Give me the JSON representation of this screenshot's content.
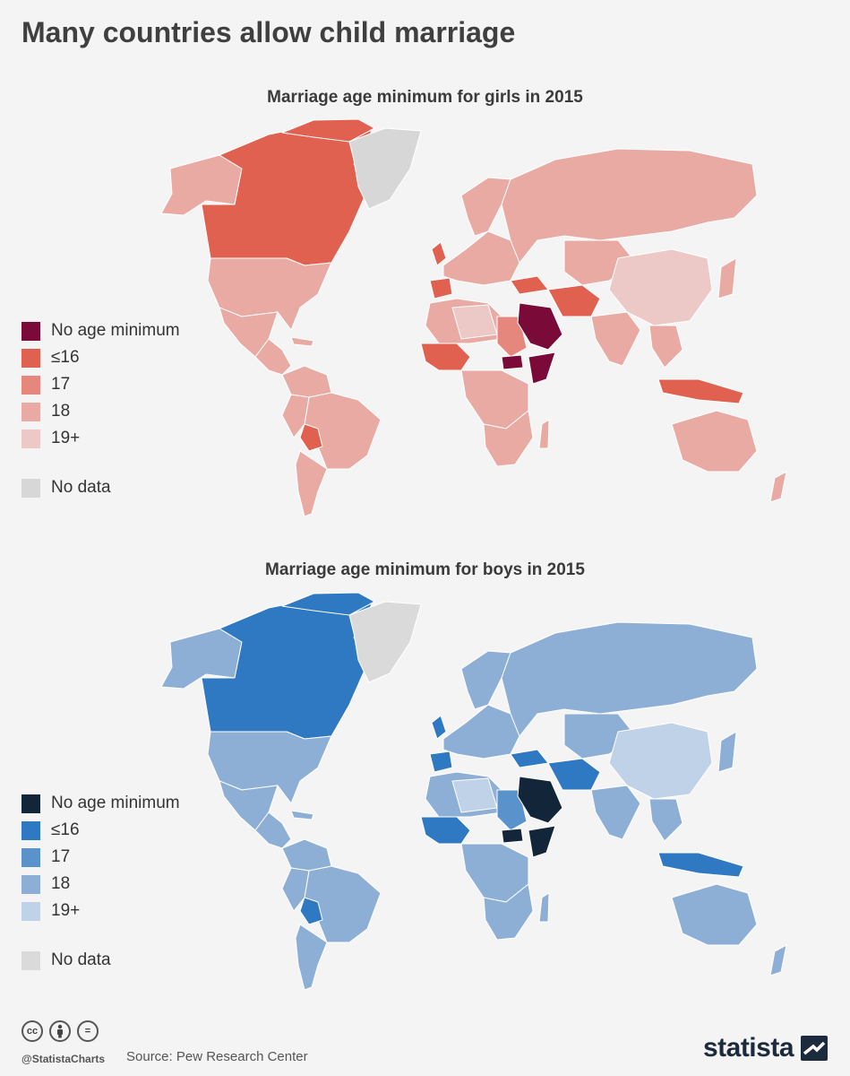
{
  "title": "Many countries allow child marriage",
  "maps": [
    {
      "id": "girls",
      "title": "Marriage age minimum for girls in 2015",
      "colors": {
        "none": "#7a0a38",
        "le16": "#e0614f",
        "a17": "#e5877c",
        "a18": "#e9aaa3",
        "a19": "#ecc9c6",
        "nodata": "#d7d7d7"
      },
      "legend": [
        {
          "label": "No age minimum",
          "color": "#7a0a38"
        },
        {
          "label": "≤16",
          "color": "#e0614f"
        },
        {
          "label": "17",
          "color": "#e5877c"
        },
        {
          "label": "18",
          "color": "#e9aaa3"
        },
        {
          "label": "19+",
          "color": "#ecc9c6"
        },
        {
          "label": "No data",
          "color": "#d7d7d7"
        }
      ]
    },
    {
      "id": "boys",
      "title": "Marriage age minimum for boys in 2015",
      "colors": {
        "none": "#132539",
        "le16": "#2f78c2",
        "a17": "#5a93cc",
        "a18": "#8dafd6",
        "a19": "#c0d2e8",
        "nodata": "#dadada"
      },
      "legend": [
        {
          "label": "No age minimum",
          "color": "#132539"
        },
        {
          "label": "≤16",
          "color": "#2f78c2"
        },
        {
          "label": "17",
          "color": "#5a93cc"
        },
        {
          "label": "18",
          "color": "#8dafd6"
        },
        {
          "label": "19+",
          "color": "#c0d2e8"
        },
        {
          "label": "No data",
          "color": "#dadada"
        }
      ]
    }
  ],
  "footer": {
    "license_icons": [
      "creative-commons-icon",
      "attribution-icon",
      "no-derivatives-icon"
    ],
    "cc_label": "cc",
    "eq_label": "=",
    "handle": "@StatistaCharts",
    "source": "Source: Pew Research Center",
    "brand": "statista"
  }
}
